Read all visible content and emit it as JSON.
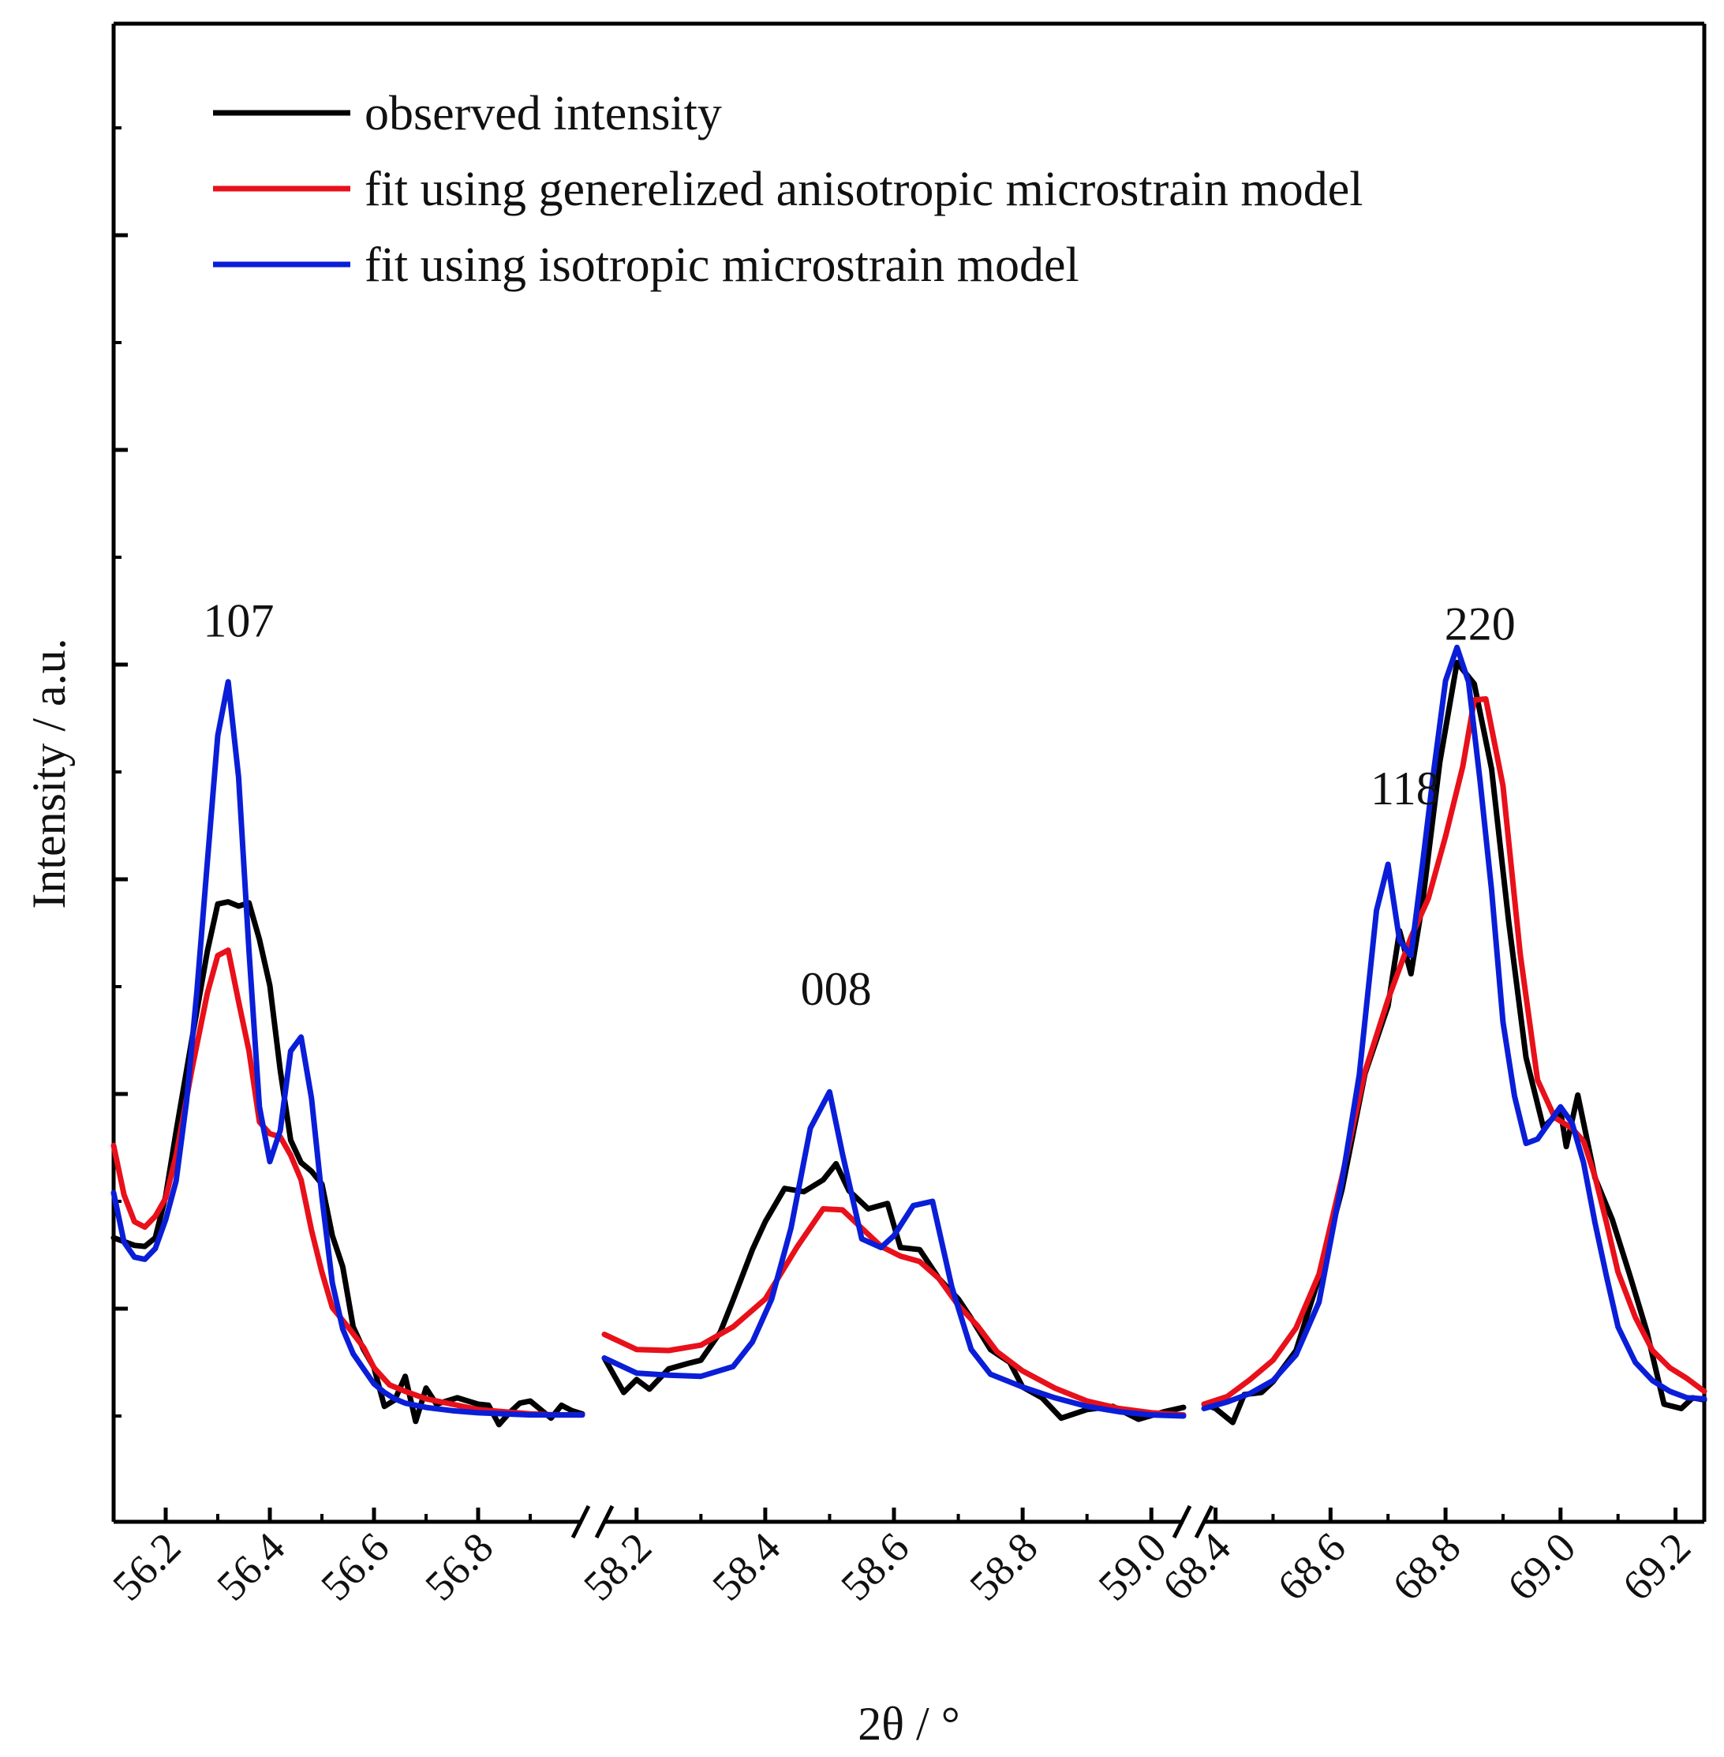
{
  "chart_data": {
    "type": "line",
    "title": "",
    "xlabel": "2θ / °",
    "ylabel": "Intensity / a.u.",
    "y_tick_labels_shown": false,
    "ylim": [
      0,
      100
    ],
    "broken_axis": true,
    "segments": [
      {
        "xlim": [
          56.1,
          57.0
        ],
        "ticks": [
          "56.2",
          "56.4",
          "56.6",
          "56.8"
        ],
        "tick_values": [
          56.2,
          56.4,
          56.6,
          56.8
        ],
        "series": [
          {
            "name": "observed intensity",
            "x": [
              56.1,
              56.14,
              56.16,
              56.18,
              56.2,
              56.22,
              56.25,
              56.28,
              56.3,
              56.32,
              56.34,
              56.36,
              56.38,
              56.4,
              56.42,
              56.44,
              56.46,
              56.48,
              56.5,
              56.52,
              56.54,
              56.56,
              56.58,
              56.6,
              56.62,
              56.64,
              56.66,
              56.68,
              56.7,
              56.72,
              56.76,
              56.8,
              56.82,
              56.84,
              56.86,
              56.88,
              56.9,
              56.92,
              56.94,
              56.96,
              56.98,
              57.0
            ],
            "y": [
              16.6,
              15.9,
              15.8,
              16.6,
              20.5,
              26.5,
              35.0,
              43.3,
              47.7,
              47.9,
              47.5,
              47.8,
              44.4,
              40.1,
              32.2,
              25.7,
              23.6,
              22.8,
              21.6,
              16.8,
              13.9,
              8.3,
              6.2,
              4.5,
              0.9,
              1.5,
              3.7,
              -0.5,
              2.6,
              1.1,
              1.7,
              1.1,
              1.0,
              -0.8,
              0.3,
              1.2,
              1.4,
              0.6,
              -0.2,
              1.0,
              0.5,
              0.2
            ]
          },
          {
            "name": "fit using generelized anisotropic microstrain model",
            "x": [
              56.1,
              56.12,
              56.14,
              56.16,
              56.18,
              56.2,
              56.22,
              56.25,
              56.28,
              56.3,
              56.32,
              56.34,
              56.36,
              56.38,
              56.4,
              56.42,
              56.44,
              56.46,
              56.48,
              56.5,
              56.52,
              56.55,
              56.58,
              56.6,
              56.63,
              56.66,
              56.7,
              56.75,
              56.8,
              56.85,
              56.9,
              56.95,
              57.0
            ],
            "y": [
              25.2,
              20.6,
              18.1,
              17.6,
              18.6,
              20.3,
              24.3,
              32.2,
              39.4,
              42.9,
              43.4,
              38.6,
              34.0,
              27.4,
              26.3,
              26.0,
              24.3,
              22.0,
              17.3,
              13.4,
              10.1,
              8.3,
              6.4,
              4.5,
              2.9,
              2.3,
              1.6,
              1.1,
              0.6,
              0.4,
              0.2,
              0.1,
              0.1
            ]
          },
          {
            "name": "fit using isotropic microstrain model",
            "x": [
              56.1,
              56.12,
              56.14,
              56.16,
              56.18,
              56.2,
              56.22,
              56.24,
              56.26,
              56.28,
              56.3,
              56.32,
              56.34,
              56.36,
              56.38,
              56.4,
              56.42,
              56.44,
              56.46,
              56.48,
              56.5,
              56.52,
              56.54,
              56.56,
              56.58,
              56.6,
              56.62,
              56.64,
              56.66,
              56.7,
              56.75,
              56.8,
              56.85,
              56.9,
              56.95,
              57.0
            ],
            "y": [
              20.8,
              16.2,
              14.8,
              14.6,
              15.6,
              18.3,
              21.9,
              29.3,
              39.6,
              51.6,
              63.4,
              68.4,
              59.5,
              43.3,
              28.8,
              23.7,
              26.6,
              34.0,
              35.3,
              29.6,
              20.4,
              12.4,
              8.1,
              5.8,
              4.4,
              3.0,
              2.2,
              1.6,
              1.2,
              0.8,
              0.5,
              0.3,
              0.2,
              0.1,
              0.1,
              0.1
            ]
          }
        ],
        "annotations": [
          {
            "text": "107",
            "x": 56.34,
            "y": 72.6
          }
        ]
      },
      {
        "xlim": [
          58.15,
          59.05
        ],
        "ticks": [
          "58.2",
          "58.4",
          "58.6",
          "58.8",
          "59.0"
        ],
        "tick_values": [
          58.2,
          58.4,
          58.6,
          58.8,
          59.0
        ],
        "series": [
          {
            "name": "observed intensity",
            "x": [
              58.15,
              58.18,
              58.2,
              58.22,
              58.25,
              58.28,
              58.3,
              58.33,
              58.35,
              58.38,
              58.4,
              58.43,
              58.46,
              58.49,
              58.51,
              58.53,
              58.56,
              58.59,
              58.61,
              58.64,
              58.67,
              58.7,
              58.72,
              58.75,
              58.78,
              58.8,
              58.83,
              58.86,
              58.9,
              58.94,
              58.98,
              59.02,
              59.05
            ],
            "y": [
              5.4,
              2.2,
              3.4,
              2.5,
              4.4,
              4.9,
              5.2,
              7.8,
              10.8,
              15.5,
              18.1,
              21.2,
              20.9,
              22.0,
              23.5,
              21.0,
              19.3,
              19.8,
              15.7,
              15.5,
              12.8,
              10.9,
              9.1,
              6.2,
              5.0,
              2.7,
              1.7,
              -0.2,
              0.6,
              0.9,
              -0.3,
              0.4,
              0.8
            ]
          },
          {
            "name": "fit using generelized anisotropic microstrain model",
            "x": [
              58.15,
              58.2,
              58.25,
              58.3,
              58.35,
              58.4,
              58.45,
              58.49,
              58.52,
              58.55,
              58.58,
              58.61,
              58.64,
              58.67,
              58.7,
              58.73,
              58.76,
              58.8,
              58.85,
              58.9,
              58.95,
              59.0,
              59.05
            ],
            "y": [
              7.6,
              6.2,
              6.1,
              6.6,
              8.3,
              10.9,
              15.8,
              19.3,
              19.2,
              17.5,
              15.8,
              14.9,
              14.4,
              12.8,
              10.3,
              8.4,
              6.0,
              4.2,
              2.6,
              1.4,
              0.7,
              0.3,
              0.1
            ]
          },
          {
            "name": "fit using isotropic microstrain model",
            "x": [
              58.15,
              58.2,
              58.25,
              58.3,
              58.35,
              58.38,
              58.41,
              58.44,
              58.47,
              58.5,
              58.52,
              58.55,
              58.58,
              58.6,
              58.63,
              58.66,
              58.69,
              58.72,
              58.75,
              58.8,
              58.85,
              58.9,
              58.95,
              59.0,
              59.05
            ],
            "y": [
              5.4,
              4.0,
              3.8,
              3.7,
              4.6,
              6.9,
              10.9,
              17.5,
              26.8,
              30.2,
              24.4,
              16.5,
              15.7,
              16.8,
              19.6,
              20.0,
              12.0,
              6.2,
              3.9,
              2.7,
              1.7,
              0.9,
              0.4,
              0.1,
              0.0
            ]
          }
        ],
        "annotations": [
          {
            "text": "008",
            "x": 58.51,
            "y": 38.3
          }
        ]
      },
      {
        "xlim": [
          68.38,
          69.25
        ],
        "ticks": [
          "68.4",
          "68.6",
          "68.8",
          "69.0",
          "69.2"
        ],
        "tick_values": [
          68.4,
          68.6,
          68.8,
          69.0,
          69.2
        ],
        "series": [
          {
            "name": "observed intensity",
            "x": [
              68.38,
              68.4,
              68.43,
              68.45,
              68.48,
              68.5,
              68.54,
              68.58,
              68.62,
              68.66,
              68.7,
              68.72,
              68.74,
              68.76,
              68.79,
              68.82,
              68.85,
              68.88,
              68.91,
              68.94,
              68.97,
              69.0,
              69.01,
              69.03,
              69.06,
              69.09,
              69.12,
              69.15,
              69.18,
              69.21,
              69.23,
              69.25
            ],
            "y": [
              1.1,
              0.7,
              -0.6,
              2.0,
              2.2,
              3.2,
              6.1,
              12.9,
              21.1,
              31.9,
              38.2,
              45.2,
              41.2,
              47.8,
              60.9,
              70.2,
              68.2,
              60.3,
              46.0,
              33.4,
              26.9,
              28.4,
              25.1,
              29.9,
              22.2,
              18.3,
              13.2,
              7.9,
              1.1,
              0.7,
              1.7,
              1.5
            ]
          },
          {
            "name": "fit using generelized anisotropic microstrain model",
            "x": [
              68.38,
              68.42,
              68.46,
              68.5,
              68.54,
              68.58,
              68.62,
              68.66,
              68.7,
              68.74,
              68.77,
              68.8,
              68.83,
              68.85,
              68.87,
              68.9,
              68.93,
              68.96,
              68.99,
              69.02,
              69.04,
              69.06,
              69.08,
              69.1,
              69.13,
              69.16,
              69.19,
              69.22,
              69.25
            ],
            "y": [
              1.1,
              1.8,
              3.4,
              5.2,
              8.2,
              13.2,
              22.3,
              32.1,
              38.8,
              44.6,
              48.2,
              54.0,
              60.5,
              66.7,
              66.8,
              58.7,
              43.0,
              31.3,
              27.8,
              26.8,
              25.6,
              22.3,
              18.0,
              13.4,
              9.2,
              6.1,
              4.5,
              3.5,
              2.3
            ]
          },
          {
            "name": "fit using isotropic microstrain model",
            "x": [
              68.38,
              68.42,
              68.46,
              68.5,
              68.54,
              68.58,
              68.62,
              68.65,
              68.68,
              68.7,
              68.72,
              68.74,
              68.76,
              68.78,
              68.8,
              68.82,
              68.84,
              68.86,
              68.88,
              68.9,
              68.92,
              68.94,
              68.96,
              68.98,
              69.0,
              69.02,
              69.04,
              69.06,
              69.08,
              69.1,
              69.13,
              69.16,
              69.19,
              69.22,
              69.25
            ],
            "y": [
              0.7,
              1.3,
              2.1,
              3.3,
              5.7,
              10.6,
              21.9,
              31.8,
              47.1,
              51.4,
              44.3,
              42.9,
              51.4,
              60.3,
              68.5,
              71.6,
              68.4,
              59.2,
              49.0,
              36.7,
              29.8,
              25.4,
              25.8,
              27.3,
              28.8,
              27.3,
              23.6,
              18.0,
              13.0,
              8.3,
              5.0,
              3.3,
              2.3,
              1.7,
              1.6
            ]
          }
        ],
        "annotations": [
          {
            "text": "118",
            "x": 68.79,
            "y": 57.0
          },
          {
            "text": "220",
            "x": 68.86,
            "y": 72.3
          }
        ]
      }
    ],
    "legend": {
      "placement": "top-left",
      "entries": [
        {
          "label": "observed intensity",
          "color": "#000000"
        },
        {
          "label": "fit using generelized anisotropic microstrain model",
          "color": "#e8101a"
        },
        {
          "label": "fit using isotropic microstrain model",
          "color": "#0a1ed8"
        }
      ]
    },
    "colors": {
      "observed": "#000000",
      "anisotropic": "#e8101a",
      "isotropic": "#0a1ed8",
      "axis": "#000000"
    }
  }
}
